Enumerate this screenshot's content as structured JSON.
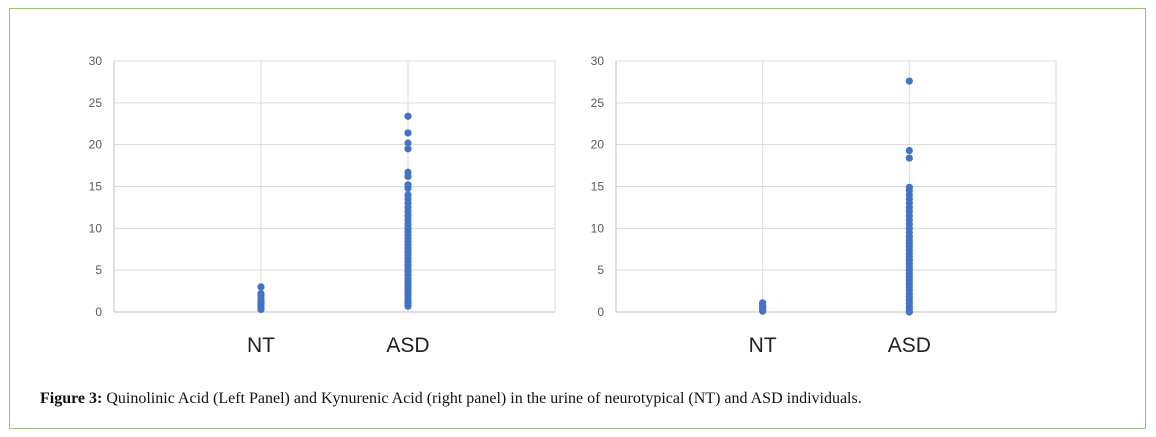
{
  "caption": {
    "label": "Figure 3:",
    "text": "Quinolinic Acid (Left Panel) and Kynurenic Acid (right panel) in the urine of neurotypical (NT) and ASD individuals."
  },
  "colors": {
    "points": "#4472c4",
    "grid": "#d9d9d9",
    "axis": "#bfbfbf",
    "frame": "#9cc07a"
  },
  "chart_data": [
    {
      "type": "scatter",
      "title": "",
      "xlabel": "",
      "ylabel": "",
      "categories": [
        "NT",
        "ASD"
      ],
      "ylim": [
        0,
        30
      ],
      "yticks": [
        0,
        5,
        10,
        15,
        20,
        25,
        30
      ],
      "grid": true,
      "series": [
        {
          "category": "NT",
          "values": [
            0.3,
            0.5,
            0.8,
            1.0,
            1.3,
            1.6,
            2.0,
            2.2,
            3.0
          ]
        },
        {
          "category": "ASD",
          "values": [
            0.7,
            1.0,
            1.3,
            1.6,
            2.0,
            2.3,
            2.7,
            3.0,
            3.3,
            3.7,
            4.0,
            4.4,
            4.8,
            5.2,
            5.6,
            6.0,
            6.4,
            6.8,
            7.2,
            7.6,
            8.0,
            8.4,
            8.8,
            9.2,
            9.6,
            10.0,
            10.5,
            11.0,
            11.5,
            12.0,
            12.5,
            13.0,
            13.5,
            14.0,
            14.8,
            15.2,
            16.2,
            16.7,
            19.5,
            20.2,
            21.4,
            23.4
          ]
        }
      ]
    },
    {
      "type": "scatter",
      "title": "",
      "xlabel": "",
      "ylabel": "",
      "categories": [
        "NT",
        "ASD"
      ],
      "ylim": [
        0,
        30
      ],
      "yticks": [
        0,
        5,
        10,
        15,
        20,
        25,
        30
      ],
      "grid": true,
      "series": [
        {
          "category": "NT",
          "values": [
            0.1,
            0.3,
            0.5,
            0.7,
            0.9,
            1.1
          ]
        },
        {
          "category": "ASD",
          "values": [
            0.0,
            0.3,
            0.6,
            1.0,
            1.4,
            1.8,
            2.2,
            2.6,
            3.0,
            3.4,
            3.8,
            4.2,
            4.6,
            5.0,
            5.4,
            5.8,
            6.2,
            6.6,
            7.0,
            7.4,
            7.8,
            8.2,
            8.6,
            9.0,
            9.5,
            10.0,
            10.5,
            11.0,
            11.5,
            12.0,
            12.5,
            13.0,
            13.5,
            14.0,
            14.5,
            14.9,
            18.4,
            19.3,
            27.6
          ]
        }
      ]
    }
  ]
}
